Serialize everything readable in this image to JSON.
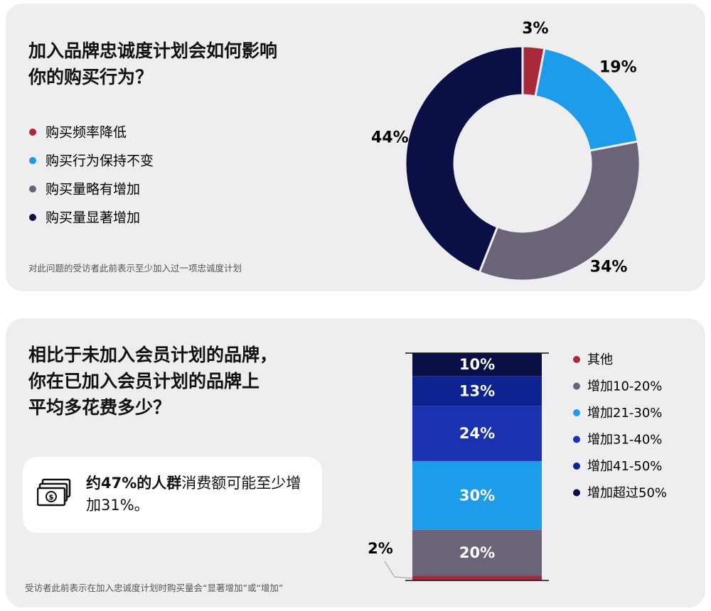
{
  "chart_data": [
    {
      "type": "donut",
      "title": [
        "加入品牌忠诚度计划会如何影响",
        "你的购买行为？"
      ],
      "categories": [
        "购买频率降低",
        "购买行为保持不变",
        "购买量略有增加",
        "购买量显著增加"
      ],
      "values": [
        3,
        19,
        34,
        44
      ],
      "value_labels": [
        "3%",
        "19%",
        "34%",
        "44%"
      ],
      "colors": [
        "#a8283c",
        "#1e9be9",
        "#6b6479",
        "#0a0f45"
      ],
      "footnote": "对此问题的受访者此前表示至少加入过一项忠诚度计划"
    },
    {
      "type": "bar",
      "stacked": true,
      "title": [
        "相比于未加入会员计划的品牌，",
        "你在已加入会员计划的品牌上",
        "平均多花费多少？"
      ],
      "callout": {
        "bold": "约47%的人群",
        "text": "消费额可能至少增加31%。"
      },
      "series": [
        {
          "name": "其他",
          "color": "#a8283c",
          "values": [
            2
          ],
          "value_labels": [
            "2%"
          ]
        },
        {
          "name": "增加10-20%",
          "color": "#6b6479",
          "values": [
            20
          ],
          "value_labels": [
            "20%"
          ]
        },
        {
          "name": "增加21-30%",
          "color": "#1e9be9",
          "values": [
            30
          ],
          "value_labels": [
            "30%"
          ]
        },
        {
          "name": "增加31-40%",
          "color": "#1a32b0",
          "values": [
            24
          ],
          "value_labels": [
            "24%"
          ]
        },
        {
          "name": "增加41-50%",
          "color": "#0c2390",
          "values": [
            13
          ],
          "value_labels": [
            "13%"
          ]
        },
        {
          "name": "增加超过50%",
          "color": "#0a0f45",
          "values": [
            10
          ],
          "value_labels": [
            "10%"
          ]
        }
      ],
      "footnote": "受访者此前表示在加入忠诚度计划时购买量会“显著增加”或“增加”"
    }
  ]
}
